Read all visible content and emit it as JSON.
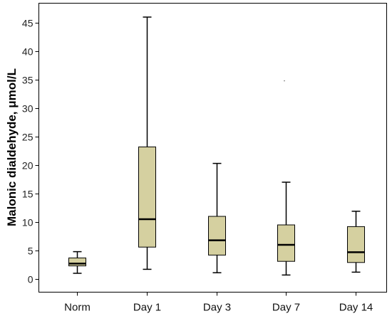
{
  "chart_data": {
    "type": "boxplot",
    "title": "",
    "xlabel": "",
    "ylabel": "Malonic dialdehyde, μmol/L",
    "ylim": [
      -2,
      48
    ],
    "yticks": [
      0,
      5,
      10,
      15,
      20,
      25,
      30,
      35,
      40,
      45
    ],
    "grid": false,
    "box_color": "#d5d0a0",
    "line_color": "#000000",
    "categories": [
      "Norm",
      "Day 1",
      "Day 3",
      "Day 7",
      "Day 14"
    ],
    "boxes": [
      {
        "category": "Norm",
        "min": 1.0,
        "q1": 2.3,
        "median": 2.7,
        "q3": 3.7,
        "max": 4.8
      },
      {
        "category": "Day 1",
        "min": 1.7,
        "q1": 5.6,
        "median": 10.5,
        "q3": 23.2,
        "max": 46.0
      },
      {
        "category": "Day 3",
        "min": 1.1,
        "q1": 4.2,
        "median": 6.8,
        "q3": 11.0,
        "max": 20.3
      },
      {
        "category": "Day 7",
        "min": 0.7,
        "q1": 3.1,
        "median": 6.0,
        "q3": 9.5,
        "max": 17.0
      },
      {
        "category": "Day 14",
        "min": 1.2,
        "q1": 2.9,
        "median": 4.7,
        "q3": 9.2,
        "max": 11.9
      }
    ],
    "outliers": [
      {
        "category": "Day 7",
        "value": 34.8
      }
    ]
  }
}
